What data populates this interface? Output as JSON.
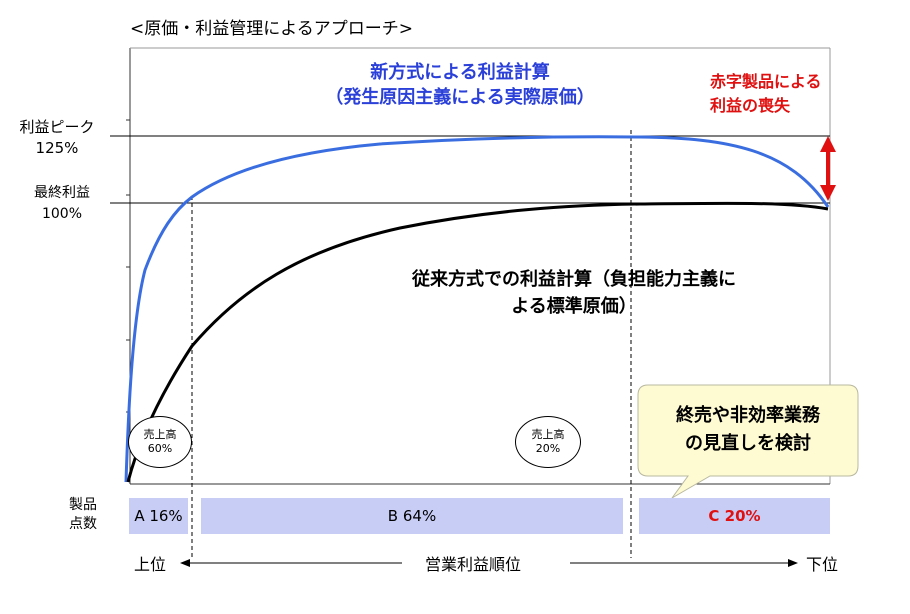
{
  "title": "<原価・利益管理によるアプローチ>",
  "y_labels": {
    "peak": [
      "利益ピーク",
      "125%"
    ],
    "final": [
      "最終利益",
      "100%"
    ]
  },
  "new_method": [
    "新方式による利益計算",
    "（発生原因主義による実際原価）"
  ],
  "old_method": [
    "従来方式での利益計算（負担能力主義に",
    "よる標準原価）"
  ],
  "red_note": [
    "赤字製品による",
    "利益の喪失"
  ],
  "circles": [
    [
      "売上高",
      "60%"
    ],
    [
      "売上高",
      "20%"
    ]
  ],
  "callout": [
    "終売や非効率業務",
    "の見直しを検討"
  ],
  "segments_label": [
    "製品",
    "点数"
  ],
  "segments": [
    {
      "label": "A 16%"
    },
    {
      "label": "B 64%"
    },
    {
      "label": "C 20%"
    }
  ],
  "bottom_axis": {
    "left": "上位",
    "center": "営業利益順位",
    "right": "下位"
  },
  "colors": {
    "new_curve": "#3a6ee0",
    "old_curve": "#000000",
    "accent_red": "#e01010",
    "segment_fill": "#c8cdf5",
    "callout_fill": "#fefbd2"
  }
}
